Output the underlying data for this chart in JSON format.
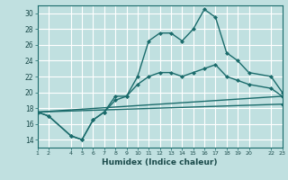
{
  "xlabel": "Humidex (Indice chaleur)",
  "bg_color": "#c0e0e0",
  "grid_color": "#ffffff",
  "line_color": "#1a6b6b",
  "xlim": [
    1,
    23
  ],
  "ylim": [
    13,
    31
  ],
  "xticks": [
    1,
    2,
    4,
    5,
    6,
    7,
    8,
    9,
    10,
    11,
    12,
    13,
    14,
    15,
    16,
    17,
    18,
    19,
    20,
    22,
    23
  ],
  "yticks": [
    14,
    16,
    18,
    20,
    22,
    24,
    26,
    28,
    30
  ],
  "line1_x": [
    1,
    2,
    4,
    5,
    6,
    7,
    8,
    9,
    10,
    11,
    12,
    13,
    14,
    15,
    16,
    17,
    18,
    19,
    20,
    22,
    23
  ],
  "line1_y": [
    17.5,
    17.0,
    14.5,
    14.0,
    16.5,
    17.5,
    19.5,
    19.5,
    22.0,
    26.5,
    27.5,
    27.5,
    26.5,
    28.0,
    30.5,
    29.5,
    25.0,
    24.0,
    22.5,
    22.0,
    20.0
  ],
  "line2_x": [
    1,
    2,
    4,
    5,
    6,
    7,
    8,
    9,
    10,
    11,
    12,
    13,
    14,
    15,
    16,
    17,
    18,
    19,
    20,
    22,
    23
  ],
  "line2_y": [
    17.5,
    17.0,
    14.5,
    14.0,
    16.5,
    17.5,
    19.0,
    19.5,
    21.0,
    22.0,
    22.5,
    22.5,
    22.0,
    22.5,
    23.0,
    23.5,
    22.0,
    21.5,
    21.0,
    20.5,
    19.5
  ],
  "line3_x": [
    1,
    23
  ],
  "line3_y": [
    17.5,
    19.5
  ],
  "line4_x": [
    1,
    23
  ],
  "line4_y": [
    17.5,
    18.5
  ]
}
